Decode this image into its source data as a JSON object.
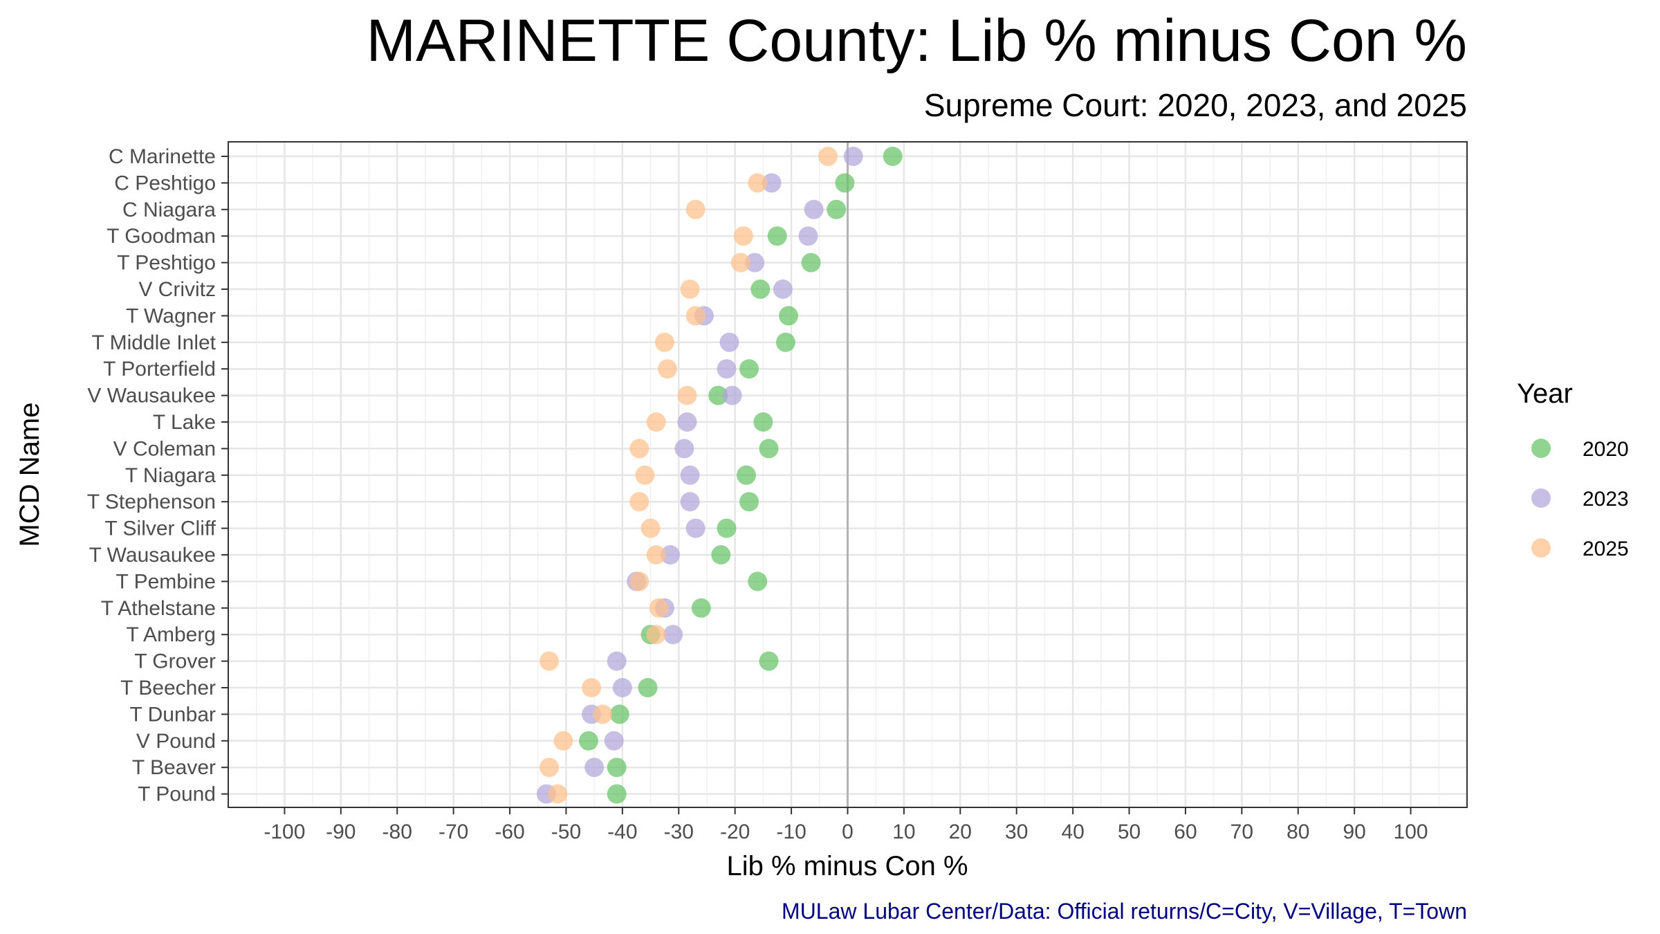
{
  "chart_data": {
    "type": "scatter",
    "title": "MARINETTE County: Lib % minus Con %",
    "subtitle": "Supreme Court: 2020, 2023, and 2025",
    "xlabel": "Lib % minus Con %",
    "ylabel": "MCD Name",
    "caption": "MULaw Lubar Center/Data: Official returns/C=City, V=Village, T=Town",
    "xlim": [
      -110,
      110
    ],
    "x_ticks": [
      -100,
      -90,
      -80,
      -70,
      -60,
      -50,
      -40,
      -30,
      -20,
      -10,
      0,
      10,
      20,
      30,
      40,
      50,
      60,
      70,
      80,
      90,
      100
    ],
    "x_tick_labels": [
      "-100",
      "-90",
      "-80",
      "-70",
      "-60",
      "-50",
      "-40",
      "-30",
      "-20",
      "-10",
      "0",
      "10",
      "20",
      "30",
      "40",
      "50",
      "60",
      "70",
      "80",
      "90",
      "100"
    ],
    "grid": true,
    "reference_line_x": 0,
    "legend": {
      "title": "Year",
      "position": "right"
    },
    "categories": [
      "C Marinette",
      "C Peshtigo",
      "C Niagara",
      "T Goodman",
      "T Peshtigo",
      "V Crivitz",
      "T Wagner",
      "T Middle Inlet",
      "T Porterfield",
      "V Wausaukee",
      "T Lake",
      "V Coleman",
      "T Niagara",
      "T Stephenson",
      "T Silver Cliff",
      "T Wausaukee",
      "T Pembine",
      "T Athelstane",
      "T Amberg",
      "T Grover",
      "T Beecher",
      "T Dunbar",
      "V Pound",
      "T Beaver",
      "T Pound"
    ],
    "series": [
      {
        "name": "2020",
        "color": "#66c266",
        "values": [
          8,
          -0.5,
          -2,
          -12.5,
          -6.5,
          -15.5,
          -10.5,
          -11,
          -17.5,
          -23,
          -15,
          -14,
          -18,
          -17.5,
          -21.5,
          -22.5,
          -16,
          -26,
          -35,
          -14,
          -35.5,
          -40.5,
          -46,
          -41,
          -41
        ]
      },
      {
        "name": "2023",
        "color": "#b3a6d9",
        "values": [
          1,
          -13.5,
          -6,
          -7,
          -16.5,
          -11.5,
          -25.5,
          -21,
          -21.5,
          -20.5,
          -28.5,
          -29,
          -28,
          -28,
          -27,
          -31.5,
          -37.5,
          -32.5,
          -31,
          -41,
          -40,
          -45.5,
          -41.5,
          -45,
          -53.5
        ]
      },
      {
        "name": "2025",
        "color": "#ffc08c",
        "values": [
          -3.5,
          -16,
          -27,
          -18.5,
          -19,
          -28,
          -27,
          -32.5,
          -32,
          -28.5,
          -34,
          -37,
          -36,
          -37,
          -35,
          -34,
          -37,
          -33.5,
          -34,
          -53,
          -45.5,
          -43.5,
          -50.5,
          -53,
          -51.5
        ]
      }
    ]
  }
}
